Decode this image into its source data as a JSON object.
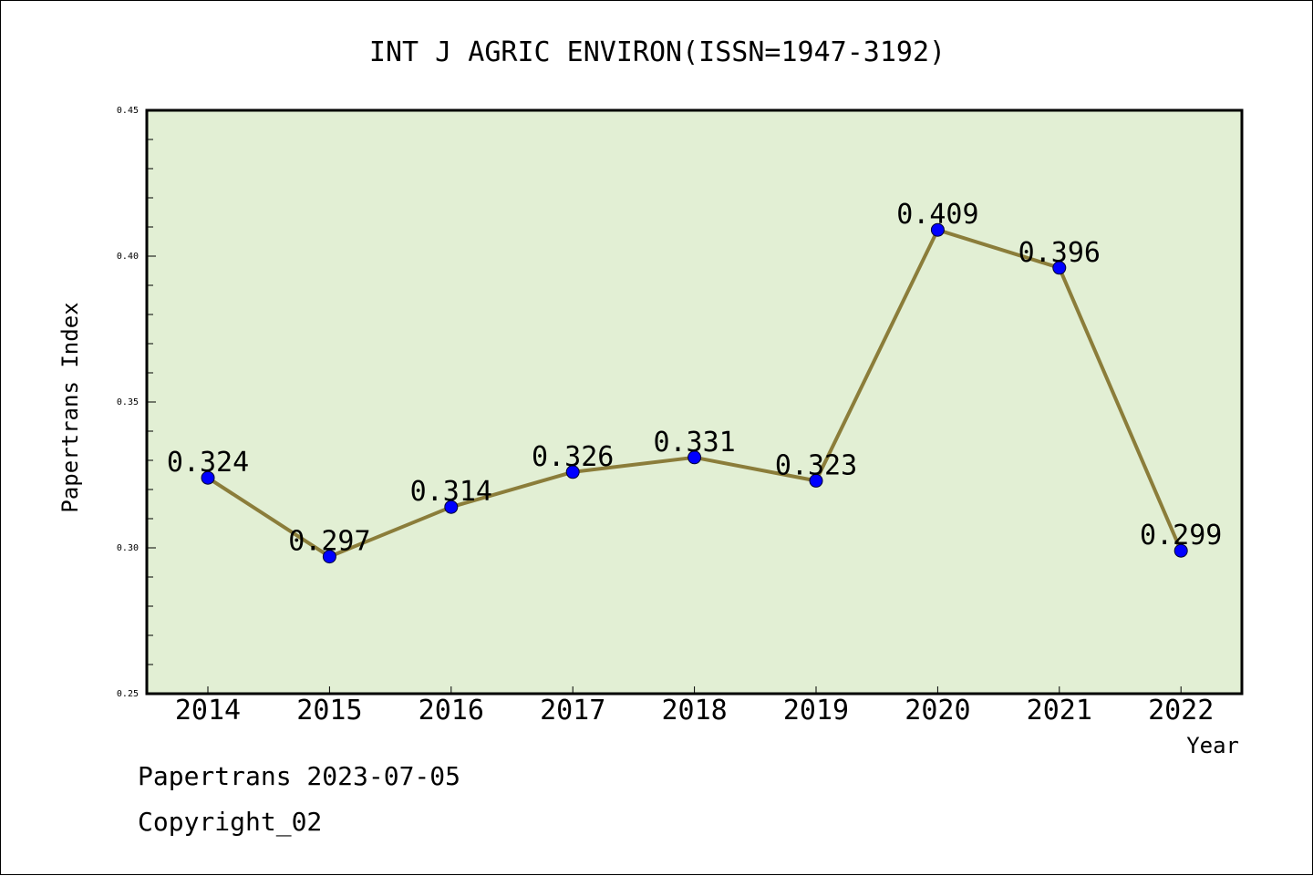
{
  "chart_data": {
    "type": "line",
    "title": "INT J AGRIC ENVIRON(ISSN=1947-3192)",
    "xlabel": "Year",
    "ylabel": "Papertrans Index",
    "categories": [
      "2014",
      "2015",
      "2016",
      "2017",
      "2018",
      "2019",
      "2020",
      "2021",
      "2022"
    ],
    "series": [
      {
        "values": [
          0.324,
          0.297,
          0.314,
          0.326,
          0.331,
          0.323,
          0.409,
          0.396,
          0.299
        ],
        "labels": [
          "0.324",
          "0.297",
          "0.314",
          "0.326",
          "0.331",
          "0.323",
          "0.409",
          "0.396",
          "0.299"
        ]
      }
    ],
    "ylim": [
      0.25,
      0.45
    ],
    "yticks": [
      0.25,
      0.3,
      0.35,
      0.4,
      0.45
    ],
    "ytick_labels": [
      "0.25",
      "0.30",
      "0.35",
      "0.40",
      "0.45"
    ],
    "grid": false,
    "colors": {
      "plot_background": "#e2efd4",
      "line": "#8b7d3a",
      "marker": "#0000ff"
    }
  },
  "footer": {
    "line1": "Papertrans 2023-07-05",
    "line2": "Copyright_02"
  }
}
